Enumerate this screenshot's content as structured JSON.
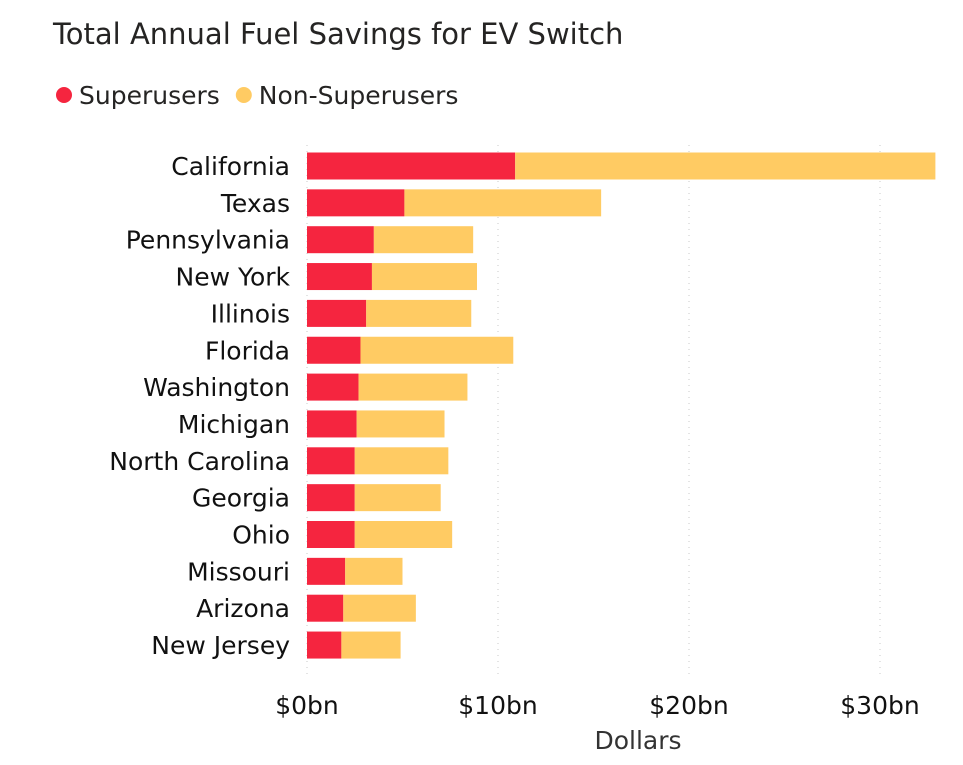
{
  "chart_data": {
    "type": "bar",
    "orientation": "horizontal",
    "stacked": true,
    "title": "Total Annual Fuel Savings for EV Switch",
    "xlabel": "Dollars",
    "ylabel": "",
    "xlim": [
      0,
      33
    ],
    "xticks": [
      0,
      10,
      20,
      30
    ],
    "xtick_labels": [
      "$0bn",
      "$10bn",
      "$20bn",
      "$30bn"
    ],
    "grid": "vertical dotted",
    "legend_position": "top-left",
    "categories": [
      "California",
      "Texas",
      "Pennsylvania",
      "New York",
      "Illinois",
      "Florida",
      "Washington",
      "Michigan",
      "North Carolina",
      "Georgia",
      "Ohio",
      "Missouri",
      "Arizona",
      "New Jersey"
    ],
    "series": [
      {
        "name": "Superusers",
        "color": "#F5253F",
        "values": [
          10.9,
          5.1,
          3.5,
          3.4,
          3.1,
          2.8,
          2.7,
          2.6,
          2.5,
          2.5,
          2.5,
          2.0,
          1.9,
          1.8
        ]
      },
      {
        "name": "Non-Superusers",
        "color": "#FFCB63",
        "values": [
          22.0,
          10.3,
          5.2,
          5.5,
          5.5,
          8.0,
          5.7,
          4.6,
          4.9,
          4.5,
          5.1,
          3.0,
          3.8,
          3.1
        ]
      }
    ]
  }
}
